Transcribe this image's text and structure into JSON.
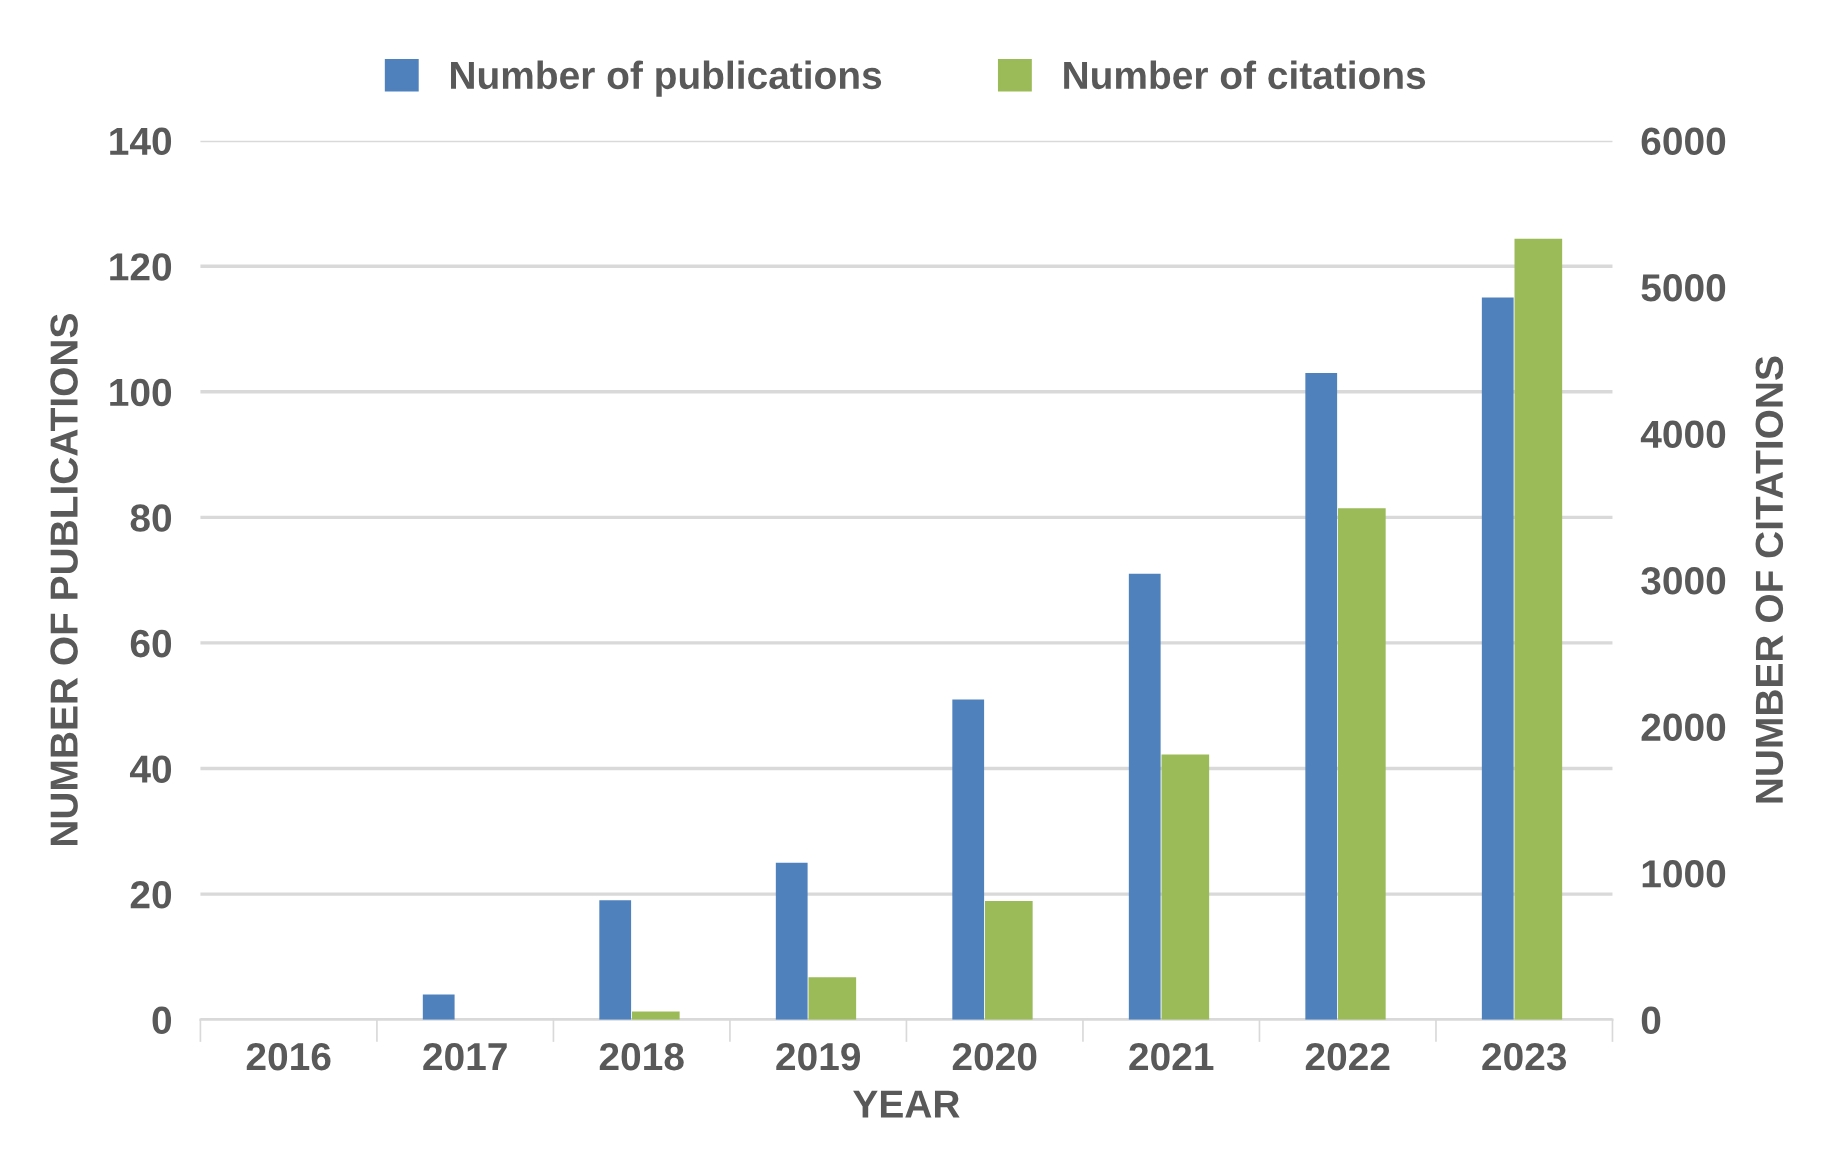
{
  "chart_data": {
    "type": "bar",
    "xlabel": "YEAR",
    "ylabel": "NUMBER OF PUBLICATIONS",
    "y2label": "NUMBER OF CITATIONS",
    "categories": [
      "2016",
      "2017",
      "2018",
      "2019",
      "2020",
      "2021",
      "2022",
      "2023"
    ],
    "series": [
      {
        "name": "Number of publications",
        "color": "#4f81bd",
        "values": [
          0,
          4,
          19,
          25,
          51,
          71,
          103,
          115
        ]
      },
      {
        "name": "Number of citations",
        "color": "#9bbb59",
        "axis": "y2",
        "values": [
          0,
          0,
          55,
          290,
          810,
          1810,
          3490,
          5330
        ]
      }
    ],
    "ylim": [
      0,
      140
    ],
    "yticks": [
      0,
      20,
      40,
      60,
      80,
      100,
      120,
      140
    ],
    "y2lim": [
      0,
      6000
    ],
    "y2ticks": [
      0,
      1000,
      2000,
      3000,
      4000,
      5000,
      6000
    ],
    "grid": "y",
    "legend": "top"
  }
}
